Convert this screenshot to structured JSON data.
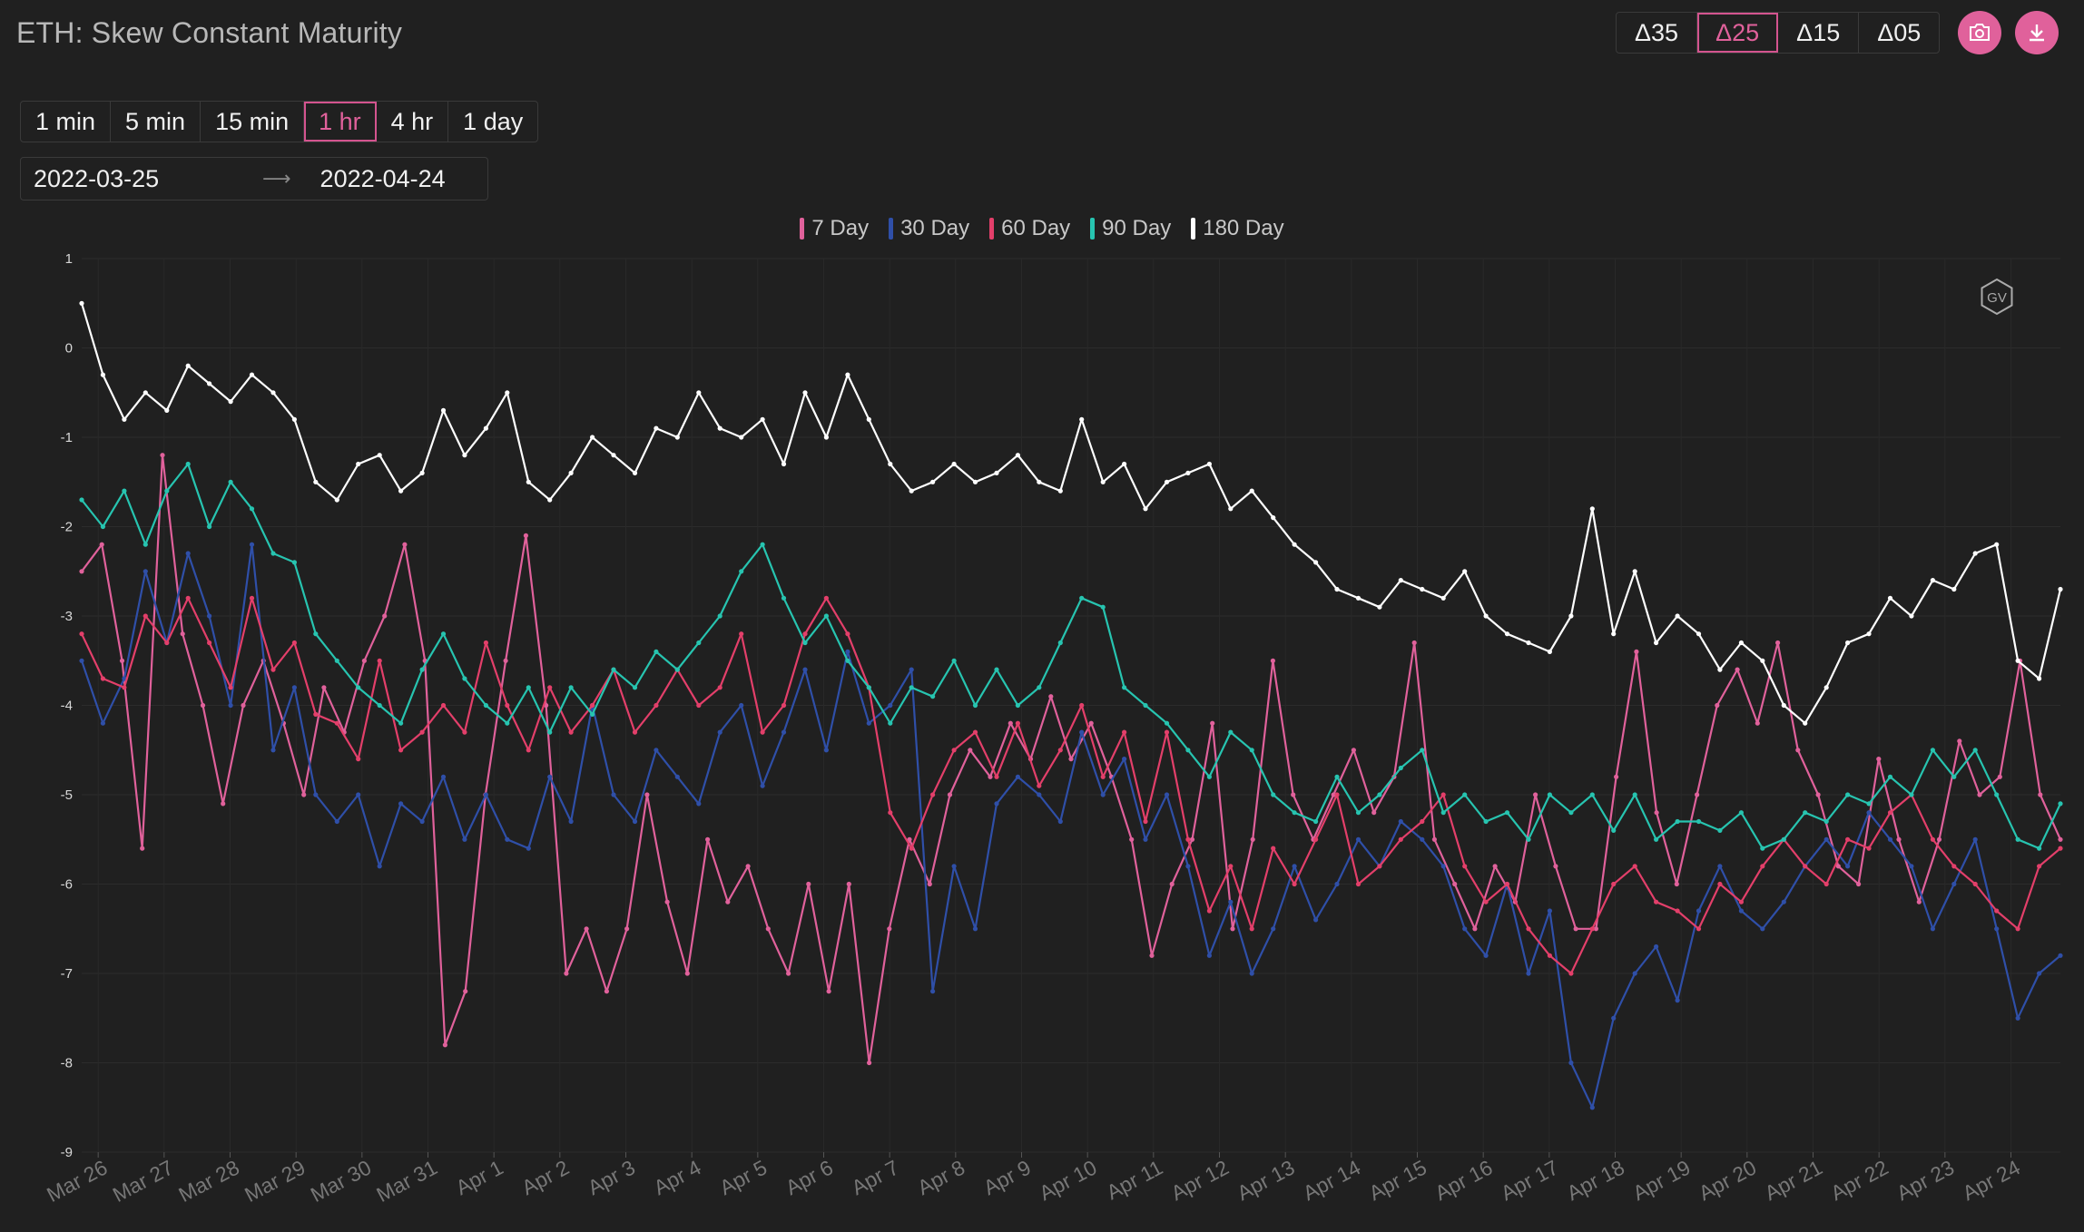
{
  "title": "ETH: Skew Constant Maturity",
  "deltas": [
    {
      "label": "Δ35",
      "active": false
    },
    {
      "label": "Δ25",
      "active": true
    },
    {
      "label": "Δ15",
      "active": false
    },
    {
      "label": "Δ05",
      "active": false
    }
  ],
  "toolbar_icons": {
    "camera": "camera-icon",
    "download": "download-icon",
    "calendar": "calendar-icon",
    "watermark": "gv-logo"
  },
  "intervals": [
    {
      "label": "1 min",
      "active": false
    },
    {
      "label": "5 min",
      "active": false
    },
    {
      "label": "15 min",
      "active": false
    },
    {
      "label": "1 hr",
      "active": true
    },
    {
      "label": "4 hr",
      "active": false
    },
    {
      "label": "1 day",
      "active": false
    }
  ],
  "date_range": {
    "start": "2022-03-25",
    "end": "2022-04-24"
  },
  "watermark": "GV",
  "chart_data": {
    "type": "line",
    "ylim": [
      -9,
      1
    ],
    "yticks": [
      1,
      0,
      -1,
      -2,
      -3,
      -4,
      -5,
      -6,
      -7,
      -8,
      -9
    ],
    "xlim": [
      "2022-03-25T18:00",
      "2022-04-24T18:00"
    ],
    "xticks": [
      {
        "date": "2022-03-26",
        "label": "Mar 26"
      },
      {
        "date": "2022-03-27",
        "label": "Mar 27"
      },
      {
        "date": "2022-03-28",
        "label": "Mar 28"
      },
      {
        "date": "2022-03-29",
        "label": "Mar 29"
      },
      {
        "date": "2022-03-30",
        "label": "Mar 30"
      },
      {
        "date": "2022-03-31",
        "label": "Mar 31"
      },
      {
        "date": "2022-04-01",
        "label": "Apr 1"
      },
      {
        "date": "2022-04-02",
        "label": "Apr 2"
      },
      {
        "date": "2022-04-03",
        "label": "Apr 3"
      },
      {
        "date": "2022-04-04",
        "label": "Apr 4"
      },
      {
        "date": "2022-04-05",
        "label": "Apr 5"
      },
      {
        "date": "2022-04-06",
        "label": "Apr 6"
      },
      {
        "date": "2022-04-07",
        "label": "Apr 7"
      },
      {
        "date": "2022-04-08",
        "label": "Apr 8"
      },
      {
        "date": "2022-04-09",
        "label": "Apr 9"
      },
      {
        "date": "2022-04-10",
        "label": "Apr 10"
      },
      {
        "date": "2022-04-11",
        "label": "Apr 11"
      },
      {
        "date": "2022-04-12",
        "label": "Apr 12"
      },
      {
        "date": "2022-04-13",
        "label": "Apr 13"
      },
      {
        "date": "2022-04-14",
        "label": "Apr 14"
      },
      {
        "date": "2022-04-15",
        "label": "Apr 15"
      },
      {
        "date": "2022-04-16",
        "label": "Apr 16"
      },
      {
        "date": "2022-04-17",
        "label": "Apr 17"
      },
      {
        "date": "2022-04-18",
        "label": "Apr 18"
      },
      {
        "date": "2022-04-19",
        "label": "Apr 19"
      },
      {
        "date": "2022-04-20",
        "label": "Apr 20"
      },
      {
        "date": "2022-04-21",
        "label": "Apr 21"
      },
      {
        "date": "2022-04-22",
        "label": "Apr 22"
      },
      {
        "date": "2022-04-23",
        "label": "Apr 23"
      },
      {
        "date": "2022-04-24",
        "label": "Apr 24"
      }
    ],
    "legend_position": "top-center",
    "grid": true,
    "series": [
      {
        "name": "7 Day",
        "color": "#e0619b",
        "values": [
          -2.5,
          -2.2,
          -3.5,
          -5.6,
          -1.2,
          -3.2,
          -4.0,
          -5.1,
          -4.0,
          -3.5,
          -4.2,
          -5.0,
          -3.8,
          -4.3,
          -3.5,
          -3.0,
          -2.2,
          -3.5,
          -7.8,
          -7.2,
          -5.0,
          -3.5,
          -2.1,
          -4.0,
          -7.0,
          -6.5,
          -7.2,
          -6.5,
          -5.0,
          -6.2,
          -7.0,
          -5.5,
          -6.2,
          -5.8,
          -6.5,
          -7.0,
          -6.0,
          -7.2,
          -6.0,
          -8.0,
          -6.5,
          -5.5,
          -6.0,
          -5.0,
          -4.5,
          -4.8,
          -4.2,
          -4.6,
          -3.9,
          -4.6,
          -4.2,
          -4.8,
          -5.5,
          -6.8,
          -6.0,
          -5.5,
          -4.2,
          -6.5,
          -5.5,
          -3.5,
          -5.0,
          -5.5,
          -5.0,
          -4.5,
          -5.2,
          -4.8,
          -3.3,
          -5.5,
          -6.0,
          -6.5,
          -5.8,
          -6.2,
          -5.0,
          -5.8,
          -6.5,
          -6.5,
          -4.8,
          -3.4,
          -5.2,
          -6.0,
          -5.0,
          -4.0,
          -3.6,
          -4.2,
          -3.3,
          -4.5,
          -5.0,
          -5.8,
          -6.0,
          -4.6,
          -5.5,
          -6.2,
          -5.5,
          -4.4,
          -5.0,
          -4.8,
          -3.5,
          -5.0,
          -5.5
        ]
      },
      {
        "name": "30 Day",
        "color": "#2f4fa8",
        "values": [
          -3.5,
          -4.2,
          -3.7,
          -2.5,
          -3.3,
          -2.3,
          -3.0,
          -4.0,
          -2.2,
          -4.5,
          -3.8,
          -5.0,
          -5.3,
          -5.0,
          -5.8,
          -5.1,
          -5.3,
          -4.8,
          -5.5,
          -5.0,
          -5.5,
          -5.6,
          -4.8,
          -5.3,
          -4.0,
          -5.0,
          -5.3,
          -4.5,
          -4.8,
          -5.1,
          -4.3,
          -4.0,
          -4.9,
          -4.3,
          -3.6,
          -4.5,
          -3.4,
          -4.2,
          -4.0,
          -3.6,
          -7.2,
          -5.8,
          -6.5,
          -5.1,
          -4.8,
          -5.0,
          -5.3,
          -4.3,
          -5.0,
          -4.6,
          -5.5,
          -5.0,
          -5.8,
          -6.8,
          -6.2,
          -7.0,
          -6.5,
          -5.8,
          -6.4,
          -6.0,
          -5.5,
          -5.8,
          -5.3,
          -5.5,
          -5.8,
          -6.5,
          -6.8,
          -6.0,
          -7.0,
          -6.3,
          -8.0,
          -8.5,
          -7.5,
          -7.0,
          -6.7,
          -7.3,
          -6.3,
          -5.8,
          -6.3,
          -6.5,
          -6.2,
          -5.8,
          -5.5,
          -5.8,
          -5.2,
          -5.5,
          -5.8,
          -6.5,
          -6.0,
          -5.5,
          -6.5,
          -7.5,
          -7.0,
          -6.8
        ]
      },
      {
        "name": "60 Day",
        "color": "#e33f6a",
        "values": [
          -3.2,
          -3.7,
          -3.8,
          -3.0,
          -3.3,
          -2.8,
          -3.3,
          -3.8,
          -2.8,
          -3.6,
          -3.3,
          -4.1,
          -4.2,
          -4.6,
          -3.5,
          -4.5,
          -4.3,
          -4.0,
          -4.3,
          -3.3,
          -4.0,
          -4.5,
          -3.8,
          -4.3,
          -4.0,
          -3.6,
          -4.3,
          -4.0,
          -3.6,
          -4.0,
          -3.8,
          -3.2,
          -4.3,
          -4.0,
          -3.2,
          -2.8,
          -3.2,
          -3.8,
          -5.2,
          -5.6,
          -5.0,
          -4.5,
          -4.3,
          -4.8,
          -4.2,
          -4.9,
          -4.5,
          -4.0,
          -4.8,
          -4.3,
          -5.3,
          -4.3,
          -5.5,
          -6.3,
          -5.8,
          -6.5,
          -5.6,
          -6.0,
          -5.5,
          -5.0,
          -6.0,
          -5.8,
          -5.5,
          -5.3,
          -5.0,
          -5.8,
          -6.2,
          -6.0,
          -6.5,
          -6.8,
          -7.0,
          -6.5,
          -6.0,
          -5.8,
          -6.2,
          -6.3,
          -6.5,
          -6.0,
          -6.2,
          -5.8,
          -5.5,
          -5.8,
          -6.0,
          -5.5,
          -5.6,
          -5.2,
          -5.0,
          -5.5,
          -5.8,
          -6.0,
          -6.3,
          -6.5,
          -5.8,
          -5.6
        ]
      },
      {
        "name": "90 Day",
        "color": "#27c4b0",
        "values": [
          -1.7,
          -2.0,
          -1.6,
          -2.2,
          -1.6,
          -1.3,
          -2.0,
          -1.5,
          -1.8,
          -2.3,
          -2.4,
          -3.2,
          -3.5,
          -3.8,
          -4.0,
          -4.2,
          -3.6,
          -3.2,
          -3.7,
          -4.0,
          -4.2,
          -3.8,
          -4.3,
          -3.8,
          -4.1,
          -3.6,
          -3.8,
          -3.4,
          -3.6,
          -3.3,
          -3.0,
          -2.5,
          -2.2,
          -2.8,
          -3.3,
          -3.0,
          -3.5,
          -3.8,
          -4.2,
          -3.8,
          -3.9,
          -3.5,
          -4.0,
          -3.6,
          -4.0,
          -3.8,
          -3.3,
          -2.8,
          -2.9,
          -3.8,
          -4.0,
          -4.2,
          -4.5,
          -4.8,
          -4.3,
          -4.5,
          -5.0,
          -5.2,
          -5.3,
          -4.8,
          -5.2,
          -5.0,
          -4.7,
          -4.5,
          -5.2,
          -5.0,
          -5.3,
          -5.2,
          -5.5,
          -5.0,
          -5.2,
          -5.0,
          -5.4,
          -5.0,
          -5.5,
          -5.3,
          -5.3,
          -5.4,
          -5.2,
          -5.6,
          -5.5,
          -5.2,
          -5.3,
          -5.0,
          -5.1,
          -4.8,
          -5.0,
          -4.5,
          -4.8,
          -4.5,
          -5.0,
          -5.5,
          -5.6,
          -5.1
        ]
      },
      {
        "name": "180 Day",
        "color": "#ffffff",
        "values": [
          0.5,
          -0.3,
          -0.8,
          -0.5,
          -0.7,
          -0.2,
          -0.4,
          -0.6,
          -0.3,
          -0.5,
          -0.8,
          -1.5,
          -1.7,
          -1.3,
          -1.2,
          -1.6,
          -1.4,
          -0.7,
          -1.2,
          -0.9,
          -0.5,
          -1.5,
          -1.7,
          -1.4,
          -1.0,
          -1.2,
          -1.4,
          -0.9,
          -1.0,
          -0.5,
          -0.9,
          -1.0,
          -0.8,
          -1.3,
          -0.5,
          -1.0,
          -0.3,
          -0.8,
          -1.3,
          -1.6,
          -1.5,
          -1.3,
          -1.5,
          -1.4,
          -1.2,
          -1.5,
          -1.6,
          -0.8,
          -1.5,
          -1.3,
          -1.8,
          -1.5,
          -1.4,
          -1.3,
          -1.8,
          -1.6,
          -1.9,
          -2.2,
          -2.4,
          -2.7,
          -2.8,
          -2.9,
          -2.6,
          -2.7,
          -2.8,
          -2.5,
          -3.0,
          -3.2,
          -3.3,
          -3.4,
          -3.0,
          -1.8,
          -3.2,
          -2.5,
          -3.3,
          -3.0,
          -3.2,
          -3.6,
          -3.3,
          -3.5,
          -4.0,
          -4.2,
          -3.8,
          -3.3,
          -3.2,
          -2.8,
          -3.0,
          -2.6,
          -2.7,
          -2.3,
          -2.2,
          -3.5,
          -3.7,
          -2.7
        ]
      }
    ]
  }
}
